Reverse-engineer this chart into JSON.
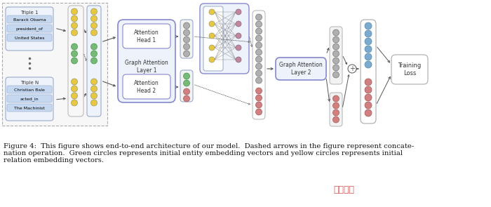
{
  "fig_width": 7.0,
  "fig_height": 2.95,
  "dpi": 100,
  "bg_color": "#ffffff",
  "caption_line1": "Figure 4:  This figure shows end-to-end architecture of our model.  Dashed arrows in the figure represent concate-",
  "caption_line2": "nation operation.  Green circles represents initial entity embedding vectors and yellow circles represents initial",
  "caption_line3": "relation embedding vectors.",
  "caption_fontsize": 7.2,
  "colors": {
    "yellow": "#e8c840",
    "green": "#78b878",
    "gray": "#b0b0b0",
    "blue_circle": "#7aaad0",
    "red_circle": "#d08080",
    "pink_circle": "#c08898",
    "purple_ec": "#8888cc",
    "input_bg": "#f8f8f8",
    "triple_bg": "#dde8f5",
    "triple_label_bg": "#c5d8f0",
    "col_bg": "#eef3fb",
    "nn_box_bg": "#eef3fb"
  }
}
